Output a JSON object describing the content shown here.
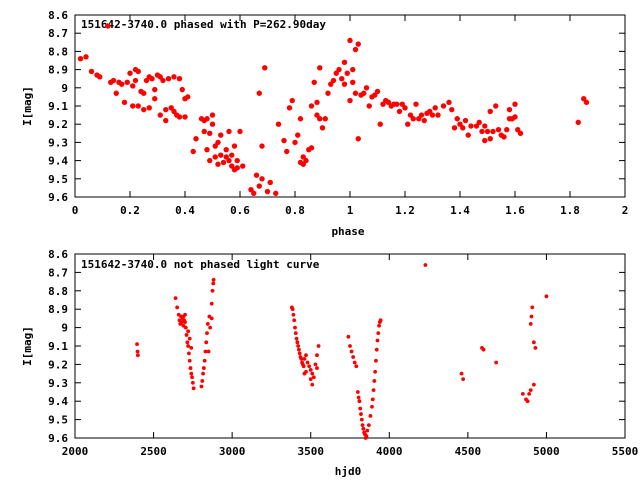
{
  "chart_data": [
    {
      "type": "scatter",
      "title": "151642-3740.0 phased with P=262.90day",
      "xlabel": "phase",
      "ylabel": "I[mag]",
      "xlim": [
        0,
        2
      ],
      "ylim": [
        9.6,
        8.6
      ],
      "y_inverted": true,
      "grid": false,
      "marker_color": "#ff0000",
      "xticks": [
        "0",
        "0.2",
        "0.4",
        "0.6",
        "0.8",
        "1",
        "1.2",
        "1.4",
        "1.6",
        "1.8",
        "2"
      ],
      "yticks": [
        "8.6",
        "8.7",
        "8.8",
        "8.9",
        "9",
        "9.1",
        "9.2",
        "9.3",
        "9.4",
        "9.5",
        "9.6"
      ],
      "points": [
        [
          0.02,
          8.84
        ],
        [
          0.04,
          8.83
        ],
        [
          0.06,
          8.91
        ],
        [
          0.08,
          8.93
        ],
        [
          0.09,
          8.94
        ],
        [
          0.12,
          8.66
        ],
        [
          0.13,
          8.97
        ],
        [
          0.14,
          8.96
        ],
        [
          0.15,
          9.03
        ],
        [
          0.16,
          8.97
        ],
        [
          0.17,
          8.98
        ],
        [
          0.18,
          9.08
        ],
        [
          0.19,
          8.97
        ],
        [
          0.2,
          8.92
        ],
        [
          0.21,
          8.99
        ],
        [
          0.21,
          9.1
        ],
        [
          0.22,
          8.96
        ],
        [
          0.22,
          8.9
        ],
        [
          0.23,
          8.91
        ],
        [
          0.23,
          9.1
        ],
        [
          0.24,
          9.02
        ],
        [
          0.25,
          9.03
        ],
        [
          0.25,
          9.12
        ],
        [
          0.26,
          8.96
        ],
        [
          0.27,
          8.94
        ],
        [
          0.27,
          9.11
        ],
        [
          0.28,
          8.95
        ],
        [
          0.29,
          9.01
        ],
        [
          0.29,
          9.06
        ],
        [
          0.3,
          8.93
        ],
        [
          0.31,
          8.94
        ],
        [
          0.31,
          9.15
        ],
        [
          0.32,
          8.96
        ],
        [
          0.33,
          9.12
        ],
        [
          0.33,
          9.18
        ],
        [
          0.34,
          8.95
        ],
        [
          0.35,
          9.11
        ],
        [
          0.36,
          9.13
        ],
        [
          0.36,
          8.94
        ],
        [
          0.37,
          9.15
        ],
        [
          0.38,
          9.16
        ],
        [
          0.38,
          8.95
        ],
        [
          0.39,
          9.01
        ],
        [
          0.4,
          9.16
        ],
        [
          0.4,
          9.06
        ],
        [
          0.41,
          9.05
        ],
        [
          0.43,
          9.35
        ],
        [
          0.44,
          9.28
        ],
        [
          0.46,
          9.17
        ],
        [
          0.47,
          9.18
        ],
        [
          0.47,
          9.24
        ],
        [
          0.48,
          9.17
        ],
        [
          0.48,
          9.34
        ],
        [
          0.49,
          9.4
        ],
        [
          0.49,
          9.25
        ],
        [
          0.5,
          9.2
        ],
        [
          0.5,
          9.15
        ],
        [
          0.51,
          9.38
        ],
        [
          0.51,
          9.32
        ],
        [
          0.52,
          9.42
        ],
        [
          0.52,
          9.3
        ],
        [
          0.53,
          9.37
        ],
        [
          0.53,
          9.26
        ],
        [
          0.54,
          9.41
        ],
        [
          0.55,
          9.38
        ],
        [
          0.55,
          9.34
        ],
        [
          0.56,
          9.24
        ],
        [
          0.56,
          9.4
        ],
        [
          0.57,
          9.43
        ],
        [
          0.57,
          9.37
        ],
        [
          0.58,
          9.45
        ],
        [
          0.58,
          9.32
        ],
        [
          0.59,
          9.44
        ],
        [
          0.59,
          9.4
        ],
        [
          0.6,
          9.24
        ],
        [
          0.61,
          9.43
        ],
        [
          0.64,
          9.56
        ],
        [
          0.65,
          9.58
        ],
        [
          0.66,
          9.48
        ],
        [
          0.67,
          9.54
        ],
        [
          0.67,
          9.03
        ],
        [
          0.68,
          9.32
        ],
        [
          0.68,
          9.5
        ],
        [
          0.69,
          8.89
        ],
        [
          0.7,
          9.57
        ],
        [
          0.71,
          9.52
        ],
        [
          0.73,
          9.58
        ],
        [
          0.74,
          9.2
        ],
        [
          0.76,
          9.29
        ],
        [
          0.77,
          9.35
        ],
        [
          0.78,
          9.11
        ],
        [
          0.79,
          9.07
        ],
        [
          0.8,
          9.3
        ],
        [
          0.81,
          9.26
        ],
        [
          0.82,
          9.41
        ],
        [
          0.82,
          9.17
        ],
        [
          0.83,
          9.42
        ],
        [
          0.83,
          9.38
        ],
        [
          0.84,
          9.4
        ],
        [
          0.85,
          9.34
        ],
        [
          0.86,
          9.1
        ],
        [
          0.86,
          9.33
        ],
        [
          0.87,
          8.97
        ],
        [
          0.88,
          9.15
        ],
        [
          0.88,
          9.08
        ],
        [
          0.89,
          8.89
        ],
        [
          0.89,
          9.17
        ],
        [
          0.9,
          9.22
        ],
        [
          0.91,
          9.17
        ],
        [
          0.92,
          9.03
        ],
        [
          0.93,
          8.98
        ],
        [
          0.94,
          8.96
        ],
        [
          0.95,
          8.92
        ],
        [
          0.96,
          8.9
        ],
        [
          0.97,
          8.95
        ],
        [
          0.98,
          8.86
        ],
        [
          0.98,
          8.98
        ],
        [
          0.99,
          8.92
        ],
        [
          1.0,
          8.74
        ],
        [
          1.0,
          9.07
        ],
        [
          1.01,
          8.97
        ],
        [
          1.01,
          8.9
        ],
        [
          1.02,
          8.79
        ],
        [
          1.02,
          9.03
        ],
        [
          1.03,
          9.28
        ],
        [
          1.03,
          8.76
        ],
        [
          1.04,
          9.04
        ],
        [
          1.05,
          9.03
        ],
        [
          1.06,
          9.0
        ],
        [
          1.07,
          9.1
        ],
        [
          1.08,
          9.05
        ],
        [
          1.09,
          9.04
        ],
        [
          1.1,
          9.02
        ],
        [
          1.11,
          9.2
        ],
        [
          1.12,
          9.09
        ],
        [
          1.13,
          9.07
        ],
        [
          1.14,
          9.08
        ],
        [
          1.15,
          9.1
        ],
        [
          1.16,
          9.09
        ],
        [
          1.17,
          9.09
        ],
        [
          1.18,
          9.13
        ],
        [
          1.19,
          9.09
        ],
        [
          1.2,
          9.11
        ],
        [
          1.21,
          9.2
        ],
        [
          1.22,
          9.15
        ],
        [
          1.23,
          9.17
        ],
        [
          1.24,
          9.09
        ],
        [
          1.25,
          9.17
        ],
        [
          1.26,
          9.15
        ],
        [
          1.27,
          9.18
        ],
        [
          1.28,
          9.14
        ],
        [
          1.29,
          9.13
        ],
        [
          1.3,
          9.15
        ],
        [
          1.31,
          9.11
        ],
        [
          1.32,
          9.15
        ],
        [
          1.34,
          9.1
        ],
        [
          1.36,
          9.08
        ],
        [
          1.37,
          9.12
        ],
        [
          1.38,
          9.22
        ],
        [
          1.39,
          9.17
        ],
        [
          1.4,
          9.2
        ],
        [
          1.41,
          9.22
        ],
        [
          1.42,
          9.18
        ],
        [
          1.43,
          9.26
        ],
        [
          1.44,
          9.21
        ],
        [
          1.46,
          9.21
        ],
        [
          1.47,
          9.19
        ],
        [
          1.48,
          9.24
        ],
        [
          1.49,
          9.29
        ],
        [
          1.49,
          9.21
        ],
        [
          1.5,
          9.24
        ],
        [
          1.51,
          9.28
        ],
        [
          1.51,
          9.13
        ],
        [
          1.52,
          9.24
        ],
        [
          1.53,
          9.1
        ],
        [
          1.54,
          9.23
        ],
        [
          1.55,
          9.26
        ],
        [
          1.56,
          9.27
        ],
        [
          1.57,
          9.23
        ],
        [
          1.58,
          9.17
        ],
        [
          1.58,
          9.12
        ],
        [
          1.59,
          9.17
        ],
        [
          1.6,
          9.09
        ],
        [
          1.6,
          9.16
        ],
        [
          1.61,
          9.23
        ],
        [
          1.62,
          9.25
        ],
        [
          1.83,
          9.19
        ],
        [
          1.85,
          9.06
        ],
        [
          1.86,
          9.08
        ]
      ]
    },
    {
      "type": "scatter",
      "title": "151642-3740.0 not phased light curve",
      "xlabel": "hjd0",
      "ylabel": "I[mag]",
      "xlim": [
        2000,
        5500
      ],
      "ylim": [
        9.6,
        8.6
      ],
      "y_inverted": true,
      "grid": false,
      "marker_color": "#ff0000",
      "xticks": [
        "2000",
        "2500",
        "3000",
        "3500",
        "4000",
        "4500",
        "5000",
        "5500"
      ],
      "yticks": [
        "8.6",
        "8.7",
        "8.8",
        "8.9",
        "9",
        "9.1",
        "9.2",
        "9.3",
        "9.4",
        "9.5",
        "9.6"
      ],
      "points": [
        [
          2395,
          9.09
        ],
        [
          2398,
          9.13
        ],
        [
          2400,
          9.15
        ],
        [
          2640,
          8.84
        ],
        [
          2650,
          8.89
        ],
        [
          2660,
          8.93
        ],
        [
          2665,
          8.96
        ],
        [
          2670,
          8.98
        ],
        [
          2675,
          8.94
        ],
        [
          2680,
          8.97
        ],
        [
          2685,
          8.95
        ],
        [
          2690,
          8.99
        ],
        [
          2695,
          8.96
        ],
        [
          2700,
          8.93
        ],
        [
          2705,
          9.0
        ],
        [
          2710,
          9.04
        ],
        [
          2715,
          9.08
        ],
        [
          2720,
          9.1
        ],
        [
          2725,
          9.14
        ],
        [
          2730,
          9.18
        ],
        [
          2735,
          9.22
        ],
        [
          2740,
          9.25
        ],
        [
          2745,
          9.27
        ],
        [
          2750,
          9.3
        ],
        [
          2755,
          9.33
        ],
        [
          2690,
          8.94
        ],
        [
          2700,
          8.97
        ],
        [
          2720,
          9.02
        ],
        [
          2730,
          9.06
        ],
        [
          2740,
          9.11
        ],
        [
          2805,
          9.32
        ],
        [
          2810,
          9.29
        ],
        [
          2815,
          9.25
        ],
        [
          2820,
          9.22
        ],
        [
          2825,
          9.18
        ],
        [
          2830,
          9.13
        ],
        [
          2835,
          9.08
        ],
        [
          2840,
          9.03
        ],
        [
          2845,
          8.98
        ],
        [
          2855,
          8.94
        ],
        [
          2870,
          8.87
        ],
        [
          2875,
          8.8
        ],
        [
          2880,
          8.76
        ],
        [
          2882,
          8.74
        ],
        [
          2870,
          8.95
        ],
        [
          2860,
          9.0
        ],
        [
          2850,
          9.13
        ],
        [
          3380,
          8.89
        ],
        [
          3385,
          8.9
        ],
        [
          3390,
          8.93
        ],
        [
          3395,
          8.96
        ],
        [
          3400,
          9.0
        ],
        [
          3405,
          9.03
        ],
        [
          3410,
          9.06
        ],
        [
          3415,
          9.08
        ],
        [
          3420,
          9.1
        ],
        [
          3425,
          9.12
        ],
        [
          3430,
          9.14
        ],
        [
          3435,
          9.16
        ],
        [
          3440,
          9.17
        ],
        [
          3445,
          9.19
        ],
        [
          3450,
          9.2
        ],
        [
          3455,
          9.21
        ],
        [
          3460,
          9.17
        ],
        [
          3470,
          9.15
        ],
        [
          3480,
          9.19
        ],
        [
          3490,
          9.21
        ],
        [
          3500,
          9.23
        ],
        [
          3510,
          9.25
        ],
        [
          3520,
          9.27
        ],
        [
          3530,
          9.2
        ],
        [
          3540,
          9.15
        ],
        [
          3550,
          9.1
        ],
        [
          3460,
          9.25
        ],
        [
          3470,
          9.24
        ],
        [
          3500,
          9.28
        ],
        [
          3510,
          9.31
        ],
        [
          3540,
          9.22
        ],
        [
          3740,
          9.05
        ],
        [
          3750,
          9.1
        ],
        [
          3760,
          9.13
        ],
        [
          3770,
          9.16
        ],
        [
          3780,
          9.19
        ],
        [
          3790,
          9.21
        ],
        [
          3800,
          9.35
        ],
        [
          3805,
          9.38
        ],
        [
          3810,
          9.4
        ],
        [
          3815,
          9.44
        ],
        [
          3820,
          9.47
        ],
        [
          3825,
          9.5
        ],
        [
          3830,
          9.53
        ],
        [
          3835,
          9.55
        ],
        [
          3840,
          9.57
        ],
        [
          3845,
          9.58
        ],
        [
          3850,
          9.6
        ],
        [
          3855,
          9.59
        ],
        [
          3860,
          9.56
        ],
        [
          3870,
          9.53
        ],
        [
          3880,
          9.48
        ],
        [
          3890,
          9.43
        ],
        [
          3895,
          9.39
        ],
        [
          3900,
          9.34
        ],
        [
          3905,
          9.29
        ],
        [
          3910,
          9.24
        ],
        [
          3915,
          9.18
        ],
        [
          3920,
          9.12
        ],
        [
          3925,
          9.07
        ],
        [
          3930,
          9.03
        ],
        [
          3935,
          8.99
        ],
        [
          3940,
          8.97
        ],
        [
          3945,
          8.96
        ],
        [
          4230,
          8.66
        ],
        [
          4460,
          9.25
        ],
        [
          4470,
          9.28
        ],
        [
          4590,
          9.11
        ],
        [
          4600,
          9.12
        ],
        [
          4680,
          9.19
        ],
        [
          4850,
          9.36
        ],
        [
          4870,
          9.39
        ],
        [
          4880,
          9.4
        ],
        [
          4890,
          9.36
        ],
        [
          4900,
          9.34
        ],
        [
          4920,
          9.31
        ],
        [
          4900,
          8.98
        ],
        [
          4905,
          8.94
        ],
        [
          4910,
          8.89
        ],
        [
          4920,
          9.08
        ],
        [
          4930,
          9.11
        ],
        [
          5000,
          8.83
        ]
      ]
    }
  ]
}
